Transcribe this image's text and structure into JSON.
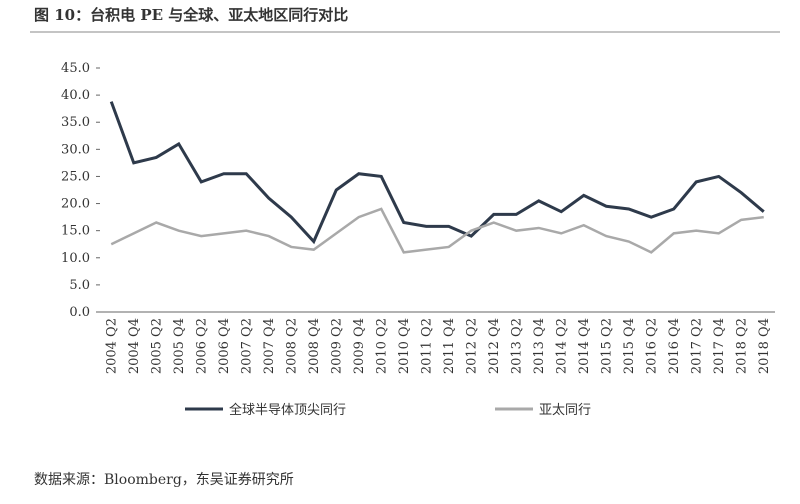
{
  "chart_data": {
    "type": "line",
    "title": "图 10：台积电 PE 与全球、亚太地区同行对比",
    "source": "数据来源：Bloomberg，东吴证券研究所",
    "categories": [
      "2004 Q2",
      "2004 Q4",
      "2005 Q2",
      "2005 Q4",
      "2006 Q2",
      "2006 Q4",
      "2007 Q2",
      "2007 Q4",
      "2008 Q2",
      "2008 Q4",
      "2009 Q2",
      "2009 Q4",
      "2010 Q2",
      "2010 Q4",
      "2011 Q2",
      "2011 Q4",
      "2012 Q2",
      "2012 Q4",
      "2013 Q2",
      "2013 Q4",
      "2014 Q2",
      "2014 Q4",
      "2015 Q2",
      "2015 Q4",
      "2016 Q2",
      "2016 Q4",
      "2017 Q2",
      "2017 Q4",
      "2018 Q2",
      "2018 Q4"
    ],
    "series": [
      {
        "name": "全球半导体顶尖同行",
        "color": "#2e3a4b",
        "values": [
          38.8,
          27.5,
          28.5,
          31.0,
          24.0,
          25.5,
          25.5,
          21.0,
          17.5,
          13.0,
          22.5,
          25.5,
          25.0,
          16.5,
          15.8,
          15.8,
          14.0,
          18.0,
          18.0,
          20.5,
          18.5,
          21.5,
          19.5,
          19.0,
          17.5,
          19.0,
          24.0,
          25.0,
          22.0,
          18.5
        ]
      },
      {
        "name": "亚太同行",
        "color": "#a9a9a9",
        "values": [
          12.5,
          14.5,
          16.5,
          15.0,
          14.0,
          14.5,
          15.0,
          14.0,
          12.0,
          11.5,
          14.5,
          17.5,
          19.0,
          11.0,
          11.5,
          12.0,
          15.0,
          16.5,
          15.0,
          15.5,
          14.5,
          16.0,
          14.0,
          13.0,
          11.0,
          14.5,
          15.0,
          14.5,
          17.0,
          17.5
        ]
      }
    ],
    "ylim": [
      0,
      45
    ],
    "yticks": [
      {
        "value": 0,
        "label": "0.0"
      },
      {
        "value": 5,
        "label": "5.0"
      },
      {
        "value": 10,
        "label": "10.0"
      },
      {
        "value": 15,
        "label": "15.0"
      },
      {
        "value": 20,
        "label": "20.0"
      },
      {
        "value": 25,
        "label": "25.0"
      },
      {
        "value": 30,
        "label": "30.0"
      },
      {
        "value": 35,
        "label": "35.0"
      },
      {
        "value": 40,
        "label": "40.0"
      },
      {
        "value": 45,
        "label": "45.0"
      }
    ]
  }
}
